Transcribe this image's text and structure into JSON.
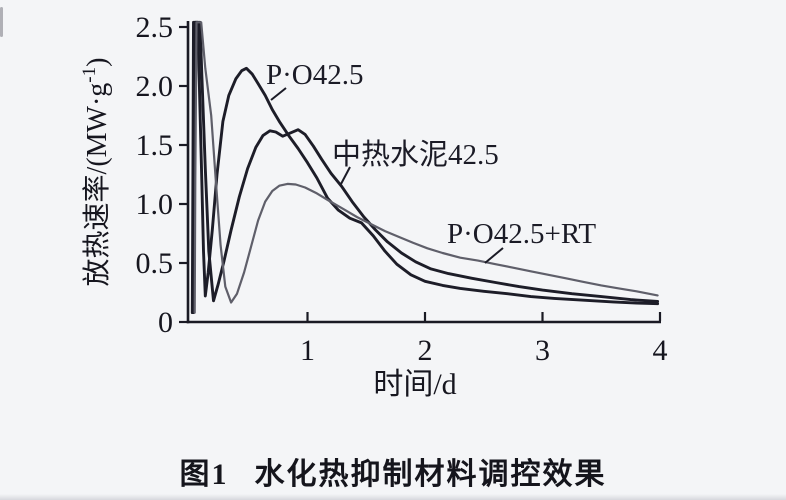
{
  "figure": {
    "caption": {
      "figure_label": "图1",
      "text": "水化热抑制材料调控效果"
    }
  },
  "chart_data": {
    "type": "line",
    "xlabel": "时间/d",
    "ylabel": "放热速率/(MW·g⁻¹)",
    "ylabel_parts": {
      "main": "放热速率/(MW·g",
      "sup": "-1",
      "end": ")"
    },
    "xlim": [
      0,
      4
    ],
    "ylim": [
      0,
      2.5
    ],
    "grid": false,
    "legend_position": "inline-annotations",
    "x_ticks": [
      1,
      2,
      3,
      4
    ],
    "x_tick_labels": [
      "1",
      "2",
      "3",
      "4"
    ],
    "y_ticks": [
      0,
      0.5,
      1.0,
      1.5,
      2.0,
      2.5
    ],
    "y_tick_labels": [
      "0",
      "0.5",
      "1.0",
      "1.5",
      "2.0",
      "2.5"
    ],
    "colors": {
      "dark_curve": "#1d1d28",
      "gray_curve": "#5f5f6a",
      "axis": "#1a1a24",
      "text": "#16161f"
    },
    "series": [
      {
        "name": "P·O42.5",
        "color": "#1d1d28",
        "width": 2.9,
        "peak": {
          "x": 0.48,
          "y": 2.15
        },
        "points": [
          [
            0.02,
            0.08
          ],
          [
            0.025,
            1.2
          ],
          [
            0.03,
            2.54
          ],
          [
            0.065,
            2.54
          ],
          [
            0.08,
            2.0
          ],
          [
            0.1,
            1.2
          ],
          [
            0.115,
            0.6
          ],
          [
            0.13,
            0.22
          ],
          [
            0.155,
            0.42
          ],
          [
            0.19,
            0.78
          ],
          [
            0.23,
            1.25
          ],
          [
            0.28,
            1.7
          ],
          [
            0.33,
            1.92
          ],
          [
            0.39,
            2.06
          ],
          [
            0.44,
            2.13
          ],
          [
            0.48,
            2.15
          ],
          [
            0.53,
            2.1
          ],
          [
            0.58,
            2.02
          ],
          [
            0.64,
            1.92
          ],
          [
            0.7,
            1.8
          ],
          [
            0.76,
            1.7
          ],
          [
            0.84,
            1.58
          ],
          [
            0.92,
            1.47
          ],
          [
            1.0,
            1.35
          ],
          [
            1.08,
            1.22
          ],
          [
            1.17,
            1.05
          ],
          [
            1.26,
            0.95
          ],
          [
            1.36,
            0.88
          ],
          [
            1.46,
            0.84
          ],
          [
            1.56,
            0.73
          ],
          [
            1.66,
            0.6
          ],
          [
            1.76,
            0.49
          ],
          [
            1.88,
            0.4
          ],
          [
            2.0,
            0.345
          ],
          [
            2.15,
            0.31
          ],
          [
            2.3,
            0.285
          ],
          [
            2.5,
            0.26
          ],
          [
            2.7,
            0.24
          ],
          [
            2.9,
            0.215
          ],
          [
            3.1,
            0.2
          ],
          [
            3.35,
            0.185
          ],
          [
            3.6,
            0.17
          ],
          [
            3.8,
            0.16
          ],
          [
            3.98,
            0.155
          ]
        ]
      },
      {
        "name": "中热水泥42.5",
        "color": "#1d1d28",
        "width": 2.9,
        "peak": {
          "x": 0.92,
          "y": 1.63
        },
        "points": [
          [
            0.03,
            0.08
          ],
          [
            0.035,
            1.2
          ],
          [
            0.045,
            2.54
          ],
          [
            0.085,
            2.54
          ],
          [
            0.1,
            2.1
          ],
          [
            0.13,
            1.3
          ],
          [
            0.16,
            0.6
          ],
          [
            0.2,
            0.18
          ],
          [
            0.24,
            0.32
          ],
          [
            0.29,
            0.52
          ],
          [
            0.35,
            0.78
          ],
          [
            0.42,
            1.06
          ],
          [
            0.49,
            1.3
          ],
          [
            0.56,
            1.48
          ],
          [
            0.62,
            1.58
          ],
          [
            0.68,
            1.62
          ],
          [
            0.73,
            1.61
          ],
          [
            0.79,
            1.575
          ],
          [
            0.85,
            1.6
          ],
          [
            0.92,
            1.63
          ],
          [
            0.98,
            1.59
          ],
          [
            1.05,
            1.49
          ],
          [
            1.12,
            1.38
          ],
          [
            1.2,
            1.26
          ],
          [
            1.29,
            1.15
          ],
          [
            1.38,
            1.02
          ],
          [
            1.48,
            0.89
          ],
          [
            1.58,
            0.78
          ],
          [
            1.68,
            0.68
          ],
          [
            1.8,
            0.585
          ],
          [
            1.92,
            0.51
          ],
          [
            2.05,
            0.45
          ],
          [
            2.2,
            0.41
          ],
          [
            2.4,
            0.37
          ],
          [
            2.6,
            0.335
          ],
          [
            2.8,
            0.3
          ],
          [
            3.0,
            0.27
          ],
          [
            3.25,
            0.24
          ],
          [
            3.5,
            0.215
          ],
          [
            3.75,
            0.19
          ],
          [
            3.98,
            0.175
          ]
        ]
      },
      {
        "name": "P·O42.5+RT",
        "color": "#5f5f6a",
        "width": 2.2,
        "peak": {
          "x": 0.85,
          "y": 1.17
        },
        "points": [
          [
            0.04,
            0.08
          ],
          [
            0.045,
            1.2
          ],
          [
            0.055,
            2.54
          ],
          [
            0.095,
            2.54
          ],
          [
            0.13,
            2.15
          ],
          [
            0.18,
            1.75
          ],
          [
            0.22,
            1.2
          ],
          [
            0.26,
            0.65
          ],
          [
            0.3,
            0.3
          ],
          [
            0.35,
            0.165
          ],
          [
            0.4,
            0.24
          ],
          [
            0.46,
            0.42
          ],
          [
            0.52,
            0.64
          ],
          [
            0.58,
            0.86
          ],
          [
            0.64,
            1.02
          ],
          [
            0.7,
            1.11
          ],
          [
            0.76,
            1.155
          ],
          [
            0.83,
            1.17
          ],
          [
            0.9,
            1.165
          ],
          [
            0.98,
            1.14
          ],
          [
            1.08,
            1.09
          ],
          [
            1.18,
            1.03
          ],
          [
            1.3,
            0.96
          ],
          [
            1.42,
            0.89
          ],
          [
            1.54,
            0.83
          ],
          [
            1.66,
            0.77
          ],
          [
            1.78,
            0.72
          ],
          [
            1.9,
            0.67
          ],
          [
            2.02,
            0.625
          ],
          [
            2.15,
            0.585
          ],
          [
            2.3,
            0.545
          ],
          [
            2.45,
            0.52
          ],
          [
            2.6,
            0.49
          ],
          [
            2.75,
            0.46
          ],
          [
            2.9,
            0.43
          ],
          [
            3.05,
            0.4
          ],
          [
            3.2,
            0.37
          ],
          [
            3.35,
            0.34
          ],
          [
            3.5,
            0.31
          ],
          [
            3.65,
            0.285
          ],
          [
            3.8,
            0.26
          ],
          [
            3.98,
            0.225
          ]
        ]
      }
    ]
  }
}
